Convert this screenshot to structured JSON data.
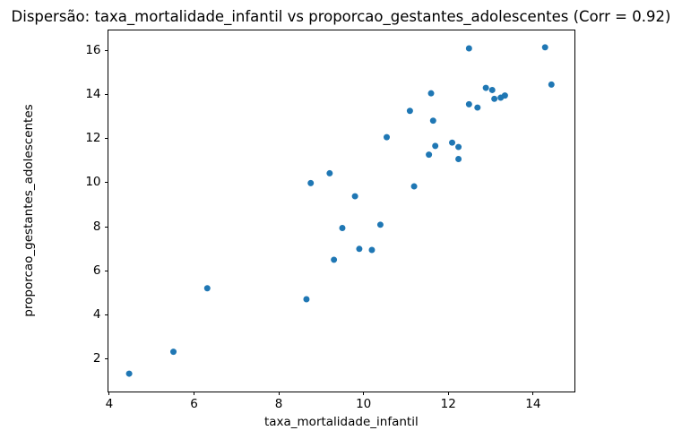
{
  "chart_data": {
    "type": "scatter",
    "title": "Dispersão: taxa_mortalidade_infantil vs proporcao_gestantes_adolescentes (Corr = 0.92)",
    "xlabel": "taxa_mortalidade_infantil",
    "ylabel": "proporcao_gestantes_adolescentes",
    "correlation": 0.92,
    "marker_color": "#1f77b4",
    "grid": false,
    "legend": null,
    "xlim": [
      3.96,
      14.99
    ],
    "ylim": [
      0.49,
      16.97
    ],
    "xticks": [
      4,
      6,
      8,
      10,
      12,
      14
    ],
    "yticks": [
      2,
      4,
      6,
      8,
      10,
      12,
      14,
      16
    ],
    "points": [
      [
        4.45,
        1.3
      ],
      [
        5.5,
        2.3
      ],
      [
        6.3,
        5.2
      ],
      [
        8.65,
        4.7
      ],
      [
        8.75,
        10.0
      ],
      [
        9.2,
        10.45
      ],
      [
        9.3,
        6.5
      ],
      [
        9.5,
        7.95
      ],
      [
        9.8,
        9.4
      ],
      [
        9.9,
        7.0
      ],
      [
        10.2,
        6.95
      ],
      [
        10.4,
        8.1
      ],
      [
        10.55,
        12.1
      ],
      [
        11.1,
        13.3
      ],
      [
        11.2,
        9.85
      ],
      [
        11.55,
        11.3
      ],
      [
        11.6,
        14.1
      ],
      [
        11.65,
        12.85
      ],
      [
        11.7,
        11.7
      ],
      [
        12.1,
        11.85
      ],
      [
        12.25,
        11.65
      ],
      [
        12.25,
        11.1
      ],
      [
        12.5,
        16.15
      ],
      [
        12.5,
        13.6
      ],
      [
        12.7,
        13.45
      ],
      [
        12.9,
        14.35
      ],
      [
        13.05,
        14.25
      ],
      [
        13.1,
        13.85
      ],
      [
        13.25,
        13.9
      ],
      [
        13.35,
        14.0
      ],
      [
        14.3,
        16.2
      ],
      [
        14.45,
        14.5
      ]
    ]
  }
}
